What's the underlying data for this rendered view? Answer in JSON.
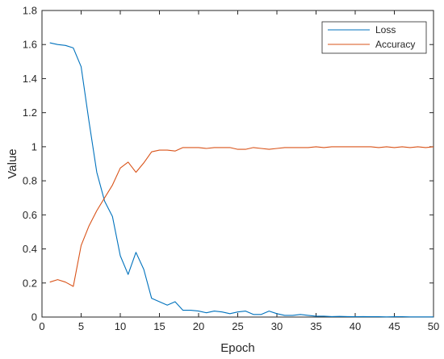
{
  "chart_data": {
    "type": "line",
    "xlabel": "Epoch",
    "ylabel": "Value",
    "xlim": [
      0,
      50
    ],
    "ylim": [
      0,
      1.8
    ],
    "xticks": [
      0,
      5,
      10,
      15,
      20,
      25,
      30,
      35,
      40,
      45,
      50
    ],
    "yticks": [
      0,
      0.2,
      0.4,
      0.6,
      0.8,
      1,
      1.2,
      1.4,
      1.6,
      1.8
    ],
    "xtick_labels": [
      "0",
      "5",
      "10",
      "15",
      "20",
      "25",
      "30",
      "35",
      "40",
      "45",
      "50"
    ],
    "ytick_labels": [
      "0",
      "0.2",
      "0.4",
      "0.6",
      "0.8",
      "1",
      "1.2",
      "1.4",
      "1.6",
      "1.8"
    ],
    "grid": false,
    "legend_position": "top-right",
    "x": [
      1,
      2,
      3,
      4,
      5,
      6,
      7,
      8,
      9,
      10,
      11,
      12,
      13,
      14,
      15,
      16,
      17,
      18,
      19,
      20,
      21,
      22,
      23,
      24,
      25,
      26,
      27,
      28,
      29,
      30,
      31,
      32,
      33,
      34,
      35,
      36,
      37,
      38,
      39,
      40,
      41,
      42,
      43,
      44,
      45,
      46,
      47,
      48,
      49,
      50
    ],
    "series": [
      {
        "name": "Loss",
        "color": "#0072BD",
        "values": [
          1.61,
          1.6,
          1.595,
          1.58,
          1.47,
          1.15,
          0.85,
          0.68,
          0.59,
          0.36,
          0.25,
          0.38,
          0.28,
          0.11,
          0.09,
          0.07,
          0.09,
          0.04,
          0.04,
          0.035,
          0.025,
          0.035,
          0.03,
          0.02,
          0.03,
          0.035,
          0.015,
          0.015,
          0.035,
          0.02,
          0.01,
          0.01,
          0.015,
          0.01,
          0.005,
          0.005,
          0.003,
          0.004,
          0.003,
          0.002,
          0.003,
          0.002,
          0.002,
          0.001,
          0.002,
          0.002,
          0.001,
          0.001,
          0.001,
          0.001
        ]
      },
      {
        "name": "Accuracy",
        "color": "#D95319",
        "values": [
          0.205,
          0.22,
          0.205,
          0.18,
          0.42,
          0.535,
          0.625,
          0.7,
          0.775,
          0.875,
          0.91,
          0.85,
          0.905,
          0.97,
          0.98,
          0.98,
          0.975,
          0.995,
          0.995,
          0.995,
          0.99,
          0.995,
          0.995,
          0.995,
          0.985,
          0.985,
          0.995,
          0.99,
          0.985,
          0.99,
          0.995,
          0.995,
          0.995,
          0.995,
          1.0,
          0.995,
          1.0,
          1.0,
          1.0,
          1.0,
          1.0,
          1.0,
          0.995,
          1.0,
          0.995,
          1.0,
          0.995,
          1.0,
          0.995,
          1.0
        ]
      }
    ]
  }
}
